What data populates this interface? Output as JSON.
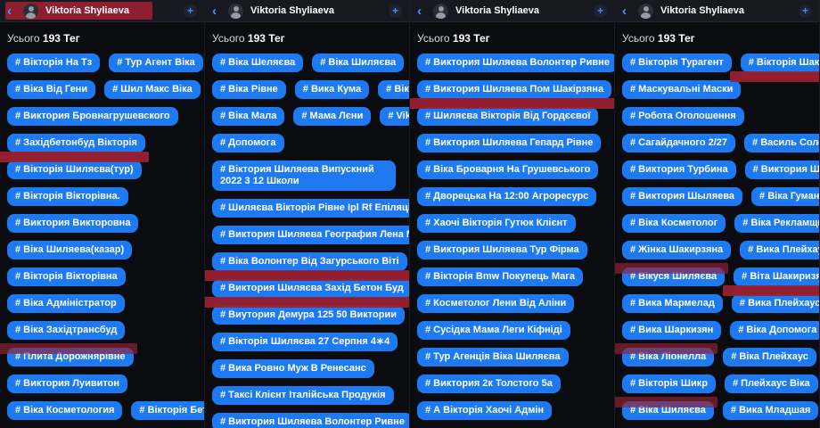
{
  "header": {
    "back_icon": "back-chevron",
    "name": "Viktoria Shyliaeva",
    "add_icon": "plus"
  },
  "summary": {
    "prefix": "Усього",
    "count": "193 Тег"
  },
  "colors": {
    "pill_blue": "#1d7af3",
    "marker_red": "#9a2133",
    "header_bg": "#171820",
    "background": "#0b0c10"
  },
  "panels": [
    {
      "header_highlight": true,
      "rows": [
        [
          "# Вікторія На Тз",
          "# Тур Агент Віка"
        ],
        [
          "# Віка Від Гени",
          "# Шил Макс Віка"
        ],
        [
          "# Виктория Бровнагрушевского"
        ],
        [
          {
            "t": "# Західбетонбуд Вікторія",
            "m": "below"
          }
        ],
        [
          "# Вікторія Шиляєва(тур)"
        ],
        [
          "# Вікторія Вікторівна."
        ],
        [
          "# Виктория Викторовна"
        ],
        [
          "# Віка Шиляева(казар)"
        ],
        [
          "# Вікторія Вікторівна"
        ],
        [
          "# Віка Адміністратор"
        ],
        [
          "# Віка Західтрансбуд"
        ],
        [
          {
            "t": "# Плита Дорожнярівне",
            "m": "top"
          }
        ],
        [
          "# Виктория Луивитон"
        ],
        [
          "# Віка Косметология",
          "# Вікторія Бетонний"
        ]
      ]
    },
    {
      "header_highlight": false,
      "rows": [
        [
          "# Віка Шеляєва",
          "# Віка Шиляєва"
        ],
        [
          "# Віка Рівне",
          "# Вика Кума",
          "# Віка Кума"
        ],
        [
          "# Віка Мала",
          "# Мама Лєни",
          "# Vika V"
        ],
        [
          "# Допомога"
        ],
        [
          {
            "t": "# Віктория Шиляева Випускний 2022 3 12 Школи",
            "wrap": true
          }
        ],
        [
          "# Шиляєва Вікторія Рівне Ipl Rf Епіляція"
        ],
        [
          "# Виктория Шиляева География Лена Мама"
        ],
        [
          {
            "t": "# Віка Волонтер Від Загурського Віті",
            "m": "below"
          }
        ],
        [
          {
            "t": "# Виктория Шиляєва Захід Бетон Буд",
            "m": "below"
          }
        ],
        [
          "# Виутория Демура 125 50 Виктории"
        ],
        [
          "# Вікторія Шиляєва 27 Серпня 4∗4"
        ],
        [
          "# Вика Ровно Муж В Ренесанс"
        ],
        [
          "# Таксі Клієнт Італійська Продукія"
        ],
        [
          {
            "t": "# Виктория Шиляева Волонтер Ривне",
            "m": "below"
          }
        ]
      ]
    },
    {
      "header_highlight": false,
      "rows": [
        [
          "# Виктория Шиляева Волонтер Ривне"
        ],
        [
          {
            "t": "# Виктория Шиляева Пом Шакірзяна",
            "m": "below"
          }
        ],
        [
          "# Шиляєва Вікторія Від Гордєєвої"
        ],
        [
          "# Виктория Шиляева Гепард Рівне"
        ],
        [
          "# Віка Броварня На Грушевського"
        ],
        [
          "# Дворецька На 12:00 Агроресурс"
        ],
        [
          "# Хаочі Вікторія Гутюк Клієнт"
        ],
        [
          "# Виктория Шиляева Тур Фірма"
        ],
        [
          "# Вікторія Bmw Покупець Мага"
        ],
        [
          "# Косметолог Лени Від Аліни"
        ],
        [
          "# Сусідка Мама Леги Кіфніді"
        ],
        [
          "# Тур Агенція Віка Шиляєва"
        ],
        [
          "# Виктория 2к Толстого 5а"
        ],
        [
          "# А Вікторія Хаочі Адмін"
        ]
      ]
    },
    {
      "header_highlight": false,
      "rows": [
        [
          "# Вікторія Турагент",
          {
            "t": "# Вікторія Шакирзян",
            "m": "below",
            "ext": "right"
          }
        ],
        [
          "# Маскувальні Маски"
        ],
        [
          "# Робота Оголошення"
        ],
        [
          "# Сагайдачного 2/27",
          "# Василь Солотвино"
        ],
        [
          "# Виктория Турбина",
          "# Виктория Шиляєва"
        ],
        [
          "# Виктория Шыляева",
          "# Віка Гуманітарка"
        ],
        [
          "# Віка Косметолог",
          "# Віка Рекламщиця"
        ],
        [
          "# Жінка Шакирзяна",
          "# Вика Плейхаус."
        ],
        [
          {
            "t": "# Вікуся Шиляєва",
            "m": "top"
          },
          {
            "t": "# Віта Шакиризян",
            "m": "below"
          }
        ],
        [
          "# Вика Мармелад",
          "# Вика Плейхаус"
        ],
        [
          "# Вика Шаркизян",
          "# Віка Допомога"
        ],
        [
          {
            "t": "# Віка Ліонелла",
            "m": "top"
          },
          "# Віка Плейхаус"
        ],
        [
          "# Вікторія Шикр",
          "# Плейхаус Віка"
        ],
        [
          {
            "t": "# Віка Шиляєва",
            "m": "top"
          },
          "# Вика Младшая"
        ]
      ]
    }
  ]
}
